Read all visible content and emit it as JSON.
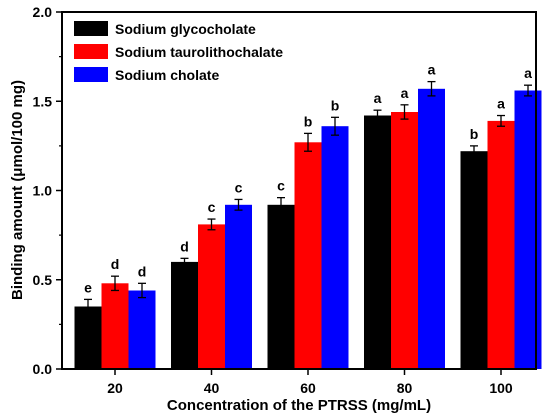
{
  "chart_data": {
    "type": "bar",
    "title": "",
    "xlabel": "Concentration of the PTRSS (mg/mL)",
    "ylabel": "Binding amount (μmol/100 mg)",
    "categories": [
      "20",
      "40",
      "60",
      "80",
      "100"
    ],
    "ylim": [
      0.0,
      2.0
    ],
    "yticks": [
      "0.0",
      "0.5",
      "1.0",
      "1.5",
      "2.0"
    ],
    "legend_position": "top-left",
    "grid": false,
    "series": [
      {
        "name": "Sodium glycocholate",
        "color": "#000000",
        "values": [
          0.35,
          0.6,
          0.92,
          1.42,
          1.22
        ],
        "errors": [
          0.04,
          0.02,
          0.04,
          0.03,
          0.03
        ],
        "labels": [
          "e",
          "d",
          "c",
          "a",
          "b"
        ]
      },
      {
        "name": "Sodium taurolithochalate",
        "color": "#ff0000",
        "values": [
          0.48,
          0.81,
          1.27,
          1.44,
          1.39
        ],
        "errors": [
          0.04,
          0.03,
          0.05,
          0.04,
          0.03
        ],
        "labels": [
          "d",
          "c",
          "b",
          "a",
          "a"
        ]
      },
      {
        "name": "Sodium cholate",
        "color": "#0000ff",
        "values": [
          0.44,
          0.92,
          1.36,
          1.57,
          1.56
        ],
        "errors": [
          0.04,
          0.03,
          0.05,
          0.04,
          0.03
        ],
        "labels": [
          "d",
          "c",
          "b",
          "a",
          "a"
        ]
      }
    ]
  }
}
